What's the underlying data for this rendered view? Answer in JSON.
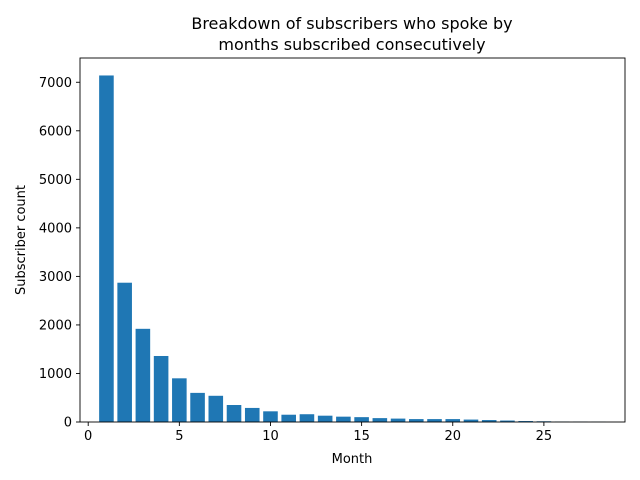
{
  "chart_data": {
    "type": "bar",
    "title_lines": [
      "Breakdown of subscribers who spoke by",
      "months subscribed consecutively"
    ],
    "xlabel": "Month",
    "ylabel": "Subscriber count",
    "xlim": [
      -0.45,
      29.45
    ],
    "ylim": [
      0,
      7500
    ],
    "xticks": [
      0,
      5,
      10,
      15,
      20,
      25
    ],
    "yticks": [
      0,
      1000,
      2000,
      3000,
      4000,
      5000,
      6000,
      7000
    ],
    "grid": false,
    "bar_color": "#1f77b4",
    "x": [
      1,
      2,
      3,
      4,
      5,
      6,
      7,
      8,
      9,
      10,
      11,
      12,
      13,
      14,
      15,
      16,
      17,
      18,
      19,
      20,
      21,
      22,
      23,
      24,
      25,
      26,
      27,
      28
    ],
    "values": [
      7140,
      2870,
      1920,
      1360,
      900,
      600,
      540,
      350,
      290,
      220,
      150,
      160,
      130,
      110,
      100,
      80,
      70,
      60,
      60,
      60,
      50,
      40,
      30,
      20,
      15,
      10,
      8,
      5
    ]
  }
}
